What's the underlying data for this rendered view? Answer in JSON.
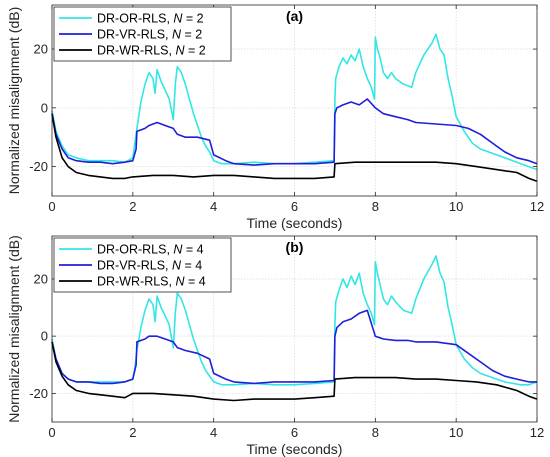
{
  "chart_data": [
    {
      "type": "line",
      "title": "(a)",
      "xlabel": "Time (seconds)",
      "ylabel": "Normalized misalignment (dB)",
      "xlim": [
        0,
        12
      ],
      "ylim": [
        -30,
        35
      ],
      "xticks": [
        0,
        2,
        4,
        6,
        8,
        10,
        12
      ],
      "yticks": [
        -20,
        0,
        20
      ],
      "grid": true,
      "legend_position": "top-left",
      "series": [
        {
          "name": "DR-OR-RLS, N = 2",
          "legend_parts": [
            "DR-OR-RLS, ",
            "N",
            " = 2"
          ],
          "color": "#33e6e6",
          "x": [
            0,
            0.1,
            0.25,
            0.4,
            0.6,
            0.9,
            1.2,
            1.5,
            1.8,
            2.0,
            2.05,
            2.1,
            2.2,
            2.3,
            2.4,
            2.5,
            2.55,
            2.6,
            2.7,
            2.8,
            2.9,
            3.0,
            3.05,
            3.1,
            3.2,
            3.3,
            3.4,
            3.5,
            3.6,
            3.7,
            3.8,
            3.9,
            4.0,
            4.2,
            4.5,
            5.0,
            5.5,
            6.0,
            6.5,
            6.98,
            7.0,
            7.02,
            7.1,
            7.2,
            7.3,
            7.4,
            7.5,
            7.6,
            7.7,
            7.8,
            7.9,
            7.98,
            8.0,
            8.05,
            8.1,
            8.2,
            8.3,
            8.4,
            8.5,
            8.7,
            8.9,
            9.0,
            9.2,
            9.4,
            9.5,
            9.6,
            9.7,
            9.8,
            9.9,
            10.0,
            10.2,
            10.4,
            10.6,
            10.8,
            11.0,
            11.2,
            11.4,
            11.6,
            11.8,
            12.0
          ],
          "values": [
            -1,
            -8,
            -13,
            -16,
            -17,
            -18,
            -18,
            -18,
            -18.5,
            -17,
            -12,
            -7,
            2,
            8,
            12,
            10,
            5,
            13,
            9,
            6,
            3,
            -4,
            8,
            14,
            12,
            8,
            3,
            -2,
            -6,
            -10,
            -13,
            -15,
            -18,
            -19,
            -19,
            -18.5,
            -19,
            -19,
            -18.5,
            -18,
            3,
            10,
            14,
            17,
            15,
            18,
            16,
            20,
            14,
            10,
            7,
            3,
            24,
            20,
            18,
            12,
            10,
            12,
            10,
            8,
            7,
            12,
            18,
            22,
            25,
            20,
            18,
            10,
            4,
            -3,
            -8,
            -12,
            -14,
            -15,
            -16,
            -17,
            -18,
            -19,
            -20,
            -21
          ]
        },
        {
          "name": "DR-VR-RLS, N = 2",
          "legend_parts": [
            "DR-VR-RLS, ",
            "N",
            " = 2"
          ],
          "color": "#1f1fd9",
          "x": [
            0,
            0.1,
            0.25,
            0.4,
            0.6,
            0.9,
            1.2,
            1.5,
            1.8,
            2.0,
            2.08,
            2.1,
            2.3,
            2.4,
            2.6,
            2.8,
            3.0,
            3.1,
            3.3,
            3.6,
            3.9,
            4.0,
            4.3,
            4.5,
            5.0,
            5.5,
            6.0,
            6.5,
            6.98,
            7.0,
            7.05,
            7.2,
            7.4,
            7.6,
            7.8,
            8.0,
            8.2,
            8.5,
            8.8,
            9.0,
            9.5,
            10.0,
            10.3,
            10.6,
            10.9,
            11.2,
            11.5,
            11.8,
            12.0
          ],
          "values": [
            -2,
            -9,
            -14,
            -17,
            -18,
            -18.5,
            -18.5,
            -19,
            -18.5,
            -18,
            -14,
            -8,
            -7,
            -6,
            -5,
            -6,
            -7,
            -9,
            -10,
            -10,
            -11,
            -16,
            -18,
            -19,
            -19.5,
            -19,
            -19,
            -19,
            -18.5,
            -2,
            0,
            1,
            2,
            1,
            3,
            0,
            -2,
            -3,
            -4,
            -5,
            -5.5,
            -6,
            -7,
            -9,
            -12,
            -15,
            -17,
            -18,
            -19
          ]
        },
        {
          "name": "DR-WR-RLS, N = 2",
          "legend_parts": [
            "DR-WR-RLS, ",
            "N",
            " = 2"
          ],
          "color": "#000000",
          "x": [
            0,
            0.1,
            0.25,
            0.4,
            0.6,
            0.9,
            1.2,
            1.5,
            1.8,
            2.0,
            2.5,
            3.0,
            3.5,
            4.0,
            4.5,
            5.0,
            5.5,
            6.0,
            6.5,
            6.98,
            7.0,
            7.5,
            8.0,
            8.5,
            9.0,
            9.5,
            10.0,
            10.5,
            11.0,
            11.5,
            11.8,
            12.0
          ],
          "values": [
            -2,
            -10,
            -17,
            -20,
            -22,
            -23,
            -23.5,
            -24,
            -24,
            -23.5,
            -23,
            -23,
            -23.5,
            -23,
            -23,
            -23.5,
            -24,
            -24,
            -24,
            -23.5,
            -19,
            -18.5,
            -18.5,
            -18.5,
            -18.5,
            -18.5,
            -19,
            -20,
            -21,
            -22,
            -24,
            -25
          ]
        }
      ]
    },
    {
      "type": "line",
      "title": "(b)",
      "xlabel": "Time (seconds)",
      "ylabel": "Normalized misalignment (dB)",
      "xlim": [
        0,
        12
      ],
      "ylim": [
        -30,
        35
      ],
      "xticks": [
        0,
        2,
        4,
        6,
        8,
        10,
        12
      ],
      "yticks": [
        -20,
        0,
        20
      ],
      "grid": true,
      "legend_position": "top-left",
      "series": [
        {
          "name": "DR-OR-RLS, N = 4",
          "legend_parts": [
            "DR-OR-RLS, ",
            "N",
            " = 4"
          ],
          "color": "#33e6e6",
          "x": [
            0,
            0.1,
            0.25,
            0.4,
            0.6,
            0.9,
            1.2,
            1.5,
            1.8,
            2.0,
            2.05,
            2.1,
            2.2,
            2.3,
            2.4,
            2.5,
            2.55,
            2.6,
            2.7,
            2.8,
            2.9,
            3.0,
            3.05,
            3.1,
            3.2,
            3.3,
            3.4,
            3.5,
            3.6,
            3.7,
            3.8,
            3.9,
            4.0,
            4.2,
            4.5,
            5.0,
            5.5,
            6.0,
            6.5,
            6.98,
            7.0,
            7.02,
            7.1,
            7.2,
            7.3,
            7.4,
            7.5,
            7.6,
            7.7,
            7.8,
            7.9,
            7.98,
            8.0,
            8.05,
            8.1,
            8.2,
            8.3,
            8.4,
            8.5,
            8.7,
            8.9,
            9.0,
            9.2,
            9.4,
            9.5,
            9.6,
            9.7,
            9.8,
            9.9,
            10.0,
            10.2,
            10.4,
            10.6,
            10.8,
            11.0,
            11.2,
            11.4,
            11.6,
            11.8,
            12.0
          ],
          "values": [
            -1,
            -8,
            -13,
            -15,
            -16,
            -16,
            -16,
            -16,
            -16,
            -15,
            -11,
            -5,
            3,
            9,
            13,
            11,
            5,
            14,
            10,
            7,
            4,
            -4,
            8,
            15,
            13,
            9,
            4,
            -1,
            -5,
            -9,
            -12,
            -14,
            -16,
            -17,
            -17,
            -16.5,
            -17,
            -17,
            -16.5,
            -16,
            4,
            12,
            16,
            20,
            17,
            21,
            18,
            22,
            15,
            11,
            8,
            4,
            26,
            22,
            19,
            13,
            11,
            14,
            12,
            9,
            8,
            13,
            20,
            25,
            28,
            22,
            19,
            10,
            4,
            -3,
            -8,
            -11,
            -13,
            -14,
            -15,
            -16,
            -16.5,
            -17,
            -17,
            -16
          ]
        },
        {
          "name": "DR-VR-RLS, N = 4",
          "legend_parts": [
            "DR-VR-RLS, ",
            "N",
            " = 4"
          ],
          "color": "#1f1fd9",
          "x": [
            0,
            0.1,
            0.25,
            0.4,
            0.6,
            0.9,
            1.2,
            1.5,
            1.8,
            2.0,
            2.08,
            2.1,
            2.3,
            2.4,
            2.6,
            2.8,
            3.0,
            3.1,
            3.3,
            3.6,
            3.9,
            4.0,
            4.3,
            4.5,
            5.0,
            5.5,
            6.0,
            6.5,
            6.98,
            7.0,
            7.05,
            7.2,
            7.4,
            7.6,
            7.8,
            8.0,
            8.2,
            8.5,
            8.8,
            9.0,
            9.5,
            10.0,
            10.3,
            10.6,
            10.9,
            11.2,
            11.5,
            11.8,
            12.0
          ],
          "values": [
            -2,
            -8,
            -13,
            -15,
            -16,
            -16,
            -16.5,
            -16.5,
            -16,
            -15,
            -10,
            -2,
            -1,
            0,
            0,
            -1,
            -2,
            -4,
            -5,
            -6,
            -8,
            -13,
            -15,
            -16,
            -16.5,
            -16,
            -16,
            -16,
            -15.5,
            0,
            3,
            5,
            6,
            8,
            9,
            0,
            -1,
            -1.5,
            -1.5,
            -2,
            -2,
            -3,
            -6,
            -9,
            -12,
            -14,
            -15,
            -16,
            -16
          ]
        },
        {
          "name": "DR-WR-RLS, N = 4",
          "legend_parts": [
            "DR-WR-RLS, ",
            "N",
            " = 4"
          ],
          "color": "#000000",
          "x": [
            0,
            0.1,
            0.25,
            0.4,
            0.6,
            0.9,
            1.2,
            1.5,
            1.8,
            2.0,
            2.5,
            3.0,
            3.5,
            4.0,
            4.5,
            5.0,
            5.5,
            6.0,
            6.5,
            6.98,
            7.0,
            7.5,
            8.0,
            8.5,
            9.0,
            9.5,
            10.0,
            10.5,
            11.0,
            11.5,
            11.8,
            12.0
          ],
          "values": [
            -2,
            -9,
            -14,
            -17,
            -19,
            -20,
            -20.5,
            -21,
            -21.5,
            -20,
            -20,
            -20.5,
            -21,
            -22,
            -22.5,
            -22,
            -22,
            -22,
            -21.5,
            -21,
            -15,
            -14.5,
            -14.5,
            -14.5,
            -15,
            -15,
            -15.5,
            -16,
            -17,
            -19,
            -21,
            -22
          ]
        }
      ]
    }
  ]
}
